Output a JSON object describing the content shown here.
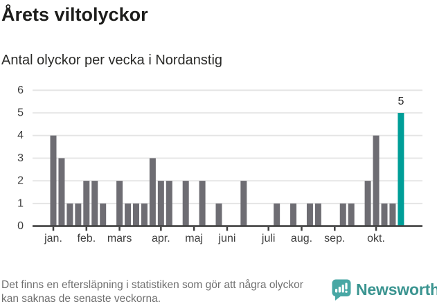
{
  "header": {
    "title": "Årets viltolyckor",
    "subtitle": "Antal olyckor per vecka i Nordanstig"
  },
  "chart_data": {
    "type": "bar",
    "title": "Årets viltolyckor",
    "subtitle": "Antal olyckor per vecka i Nordanstig",
    "x_unit": "week of year",
    "values": [
      4,
      3,
      1,
      1,
      2,
      2,
      1,
      0,
      2,
      1,
      1,
      1,
      3,
      2,
      2,
      0,
      2,
      0,
      2,
      0,
      1,
      0,
      0,
      2,
      0,
      0,
      0,
      1,
      0,
      1,
      0,
      1,
      1,
      0,
      0,
      1,
      1,
      0,
      2,
      4,
      1,
      1,
      5
    ],
    "month_ticks": [
      {
        "label": "jan.",
        "week": 1
      },
      {
        "label": "feb.",
        "week": 5
      },
      {
        "label": "mars",
        "week": 9
      },
      {
        "label": "apr.",
        "week": 14
      },
      {
        "label": "maj",
        "week": 18
      },
      {
        "label": "juni",
        "week": 22
      },
      {
        "label": "juli",
        "week": 27
      },
      {
        "label": "aug.",
        "week": 31
      },
      {
        "label": "sep.",
        "week": 35
      },
      {
        "label": "okt.",
        "week": 40
      }
    ],
    "yticks": [
      0,
      1,
      2,
      3,
      4,
      5,
      6
    ],
    "ylim": [
      0,
      6
    ],
    "grid": true,
    "legend": false,
    "highlight": {
      "week": 43,
      "value": 5,
      "label": "5"
    },
    "colors": {
      "bar": "#6e6d73",
      "highlight": "#009e98",
      "grid": "#e4e4e4",
      "axis": "#3f3f3f",
      "tick_label": "#3d3d3d",
      "annotation": "#222222"
    }
  },
  "footer": {
    "note": "Det finns en eftersläpning i statistiken som gör att några olyckor kan saknas de senaste veckorna."
  },
  "logo": {
    "wordmark": "Newsworthy",
    "icon": "newsworthy-bubble-bars-icon",
    "brand_color": "#3a9490",
    "icon_color": "#48a7a4"
  }
}
